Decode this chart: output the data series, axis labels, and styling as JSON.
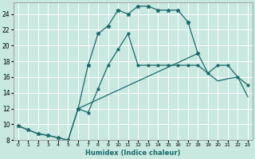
{
  "xlabel": "Humidex (Indice chaleur)",
  "xlim": [
    -0.5,
    23.5
  ],
  "ylim": [
    8,
    25.5
  ],
  "xticks": [
    0,
    1,
    2,
    3,
    4,
    5,
    6,
    7,
    8,
    9,
    10,
    11,
    12,
    13,
    14,
    15,
    16,
    17,
    18,
    19,
    20,
    21,
    22,
    23
  ],
  "yticks": [
    8,
    10,
    12,
    14,
    16,
    18,
    20,
    22,
    24
  ],
  "bg_color": "#c8e8e0",
  "grid_color": "#ffffff",
  "line_color": "#1a6b6b",
  "line_top_x": [
    0,
    1,
    2,
    3,
    4,
    5,
    6,
    7,
    8,
    9,
    10,
    11,
    12,
    13,
    14,
    15,
    16,
    17,
    18
  ],
  "line_top_y": [
    9.8,
    9.3,
    8.8,
    8.6,
    8.3,
    8.0,
    12.0,
    17.5,
    21.5,
    22.5,
    24.5,
    24.0,
    25.0,
    25.0,
    24.5,
    24.5,
    24.5,
    23.0,
    19.0
  ],
  "line_mid_x": [
    6,
    7,
    8,
    9,
    10,
    11,
    12,
    13,
    14,
    15,
    16,
    17,
    18,
    19,
    20,
    21,
    22,
    23
  ],
  "line_mid_y": [
    12.0,
    11.5,
    14.5,
    17.5,
    19.5,
    21.5,
    17.5,
    17.5,
    17.5,
    17.5,
    17.5,
    17.5,
    17.5,
    16.5,
    17.5,
    17.5,
    16.0,
    15.0
  ],
  "line_bot_x": [
    0,
    1,
    2,
    3,
    4,
    5,
    6,
    18,
    19,
    20,
    21,
    22,
    23
  ],
  "line_bot_y": [
    9.8,
    9.3,
    8.8,
    8.6,
    8.3,
    8.0,
    12.0,
    19.0,
    16.5,
    15.5,
    15.8,
    16.0,
    13.5
  ]
}
